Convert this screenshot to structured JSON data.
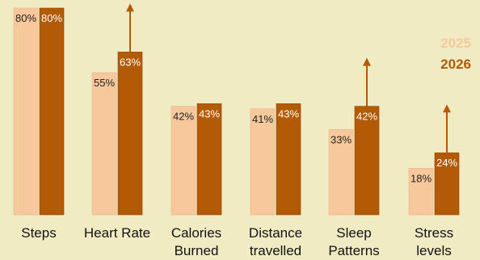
{
  "chart_data": {
    "type": "bar",
    "title": "",
    "xlabel": "",
    "ylabel": "",
    "ylim": [
      0,
      85
    ],
    "grid": false,
    "legend_position": "right",
    "categories": [
      [
        "Steps"
      ],
      [
        "Heart Rate"
      ],
      [
        "Calories",
        "Burned"
      ],
      [
        "Distance",
        "travelled"
      ],
      [
        "Sleep",
        "Patterns"
      ],
      [
        "Stress",
        "levels"
      ]
    ],
    "series": [
      {
        "name": "2025",
        "color": "#f7c89b",
        "values": [
          80,
          55,
          42,
          41,
          33,
          18
        ],
        "labels": [
          "80%",
          "55%",
          "42%",
          "41%",
          "33%",
          "18%"
        ]
      },
      {
        "name": "2026",
        "color": "#b35a06",
        "values": [
          80,
          63,
          43,
          43,
          42,
          24
        ],
        "labels": [
          "80%",
          "63%",
          "43%",
          "43%",
          "42%",
          "24%"
        ]
      }
    ],
    "increase_arrows": [
      "Heart Rate",
      "Sleep Patterns",
      "Stress levels"
    ],
    "arrow_color": "#b35a06"
  }
}
